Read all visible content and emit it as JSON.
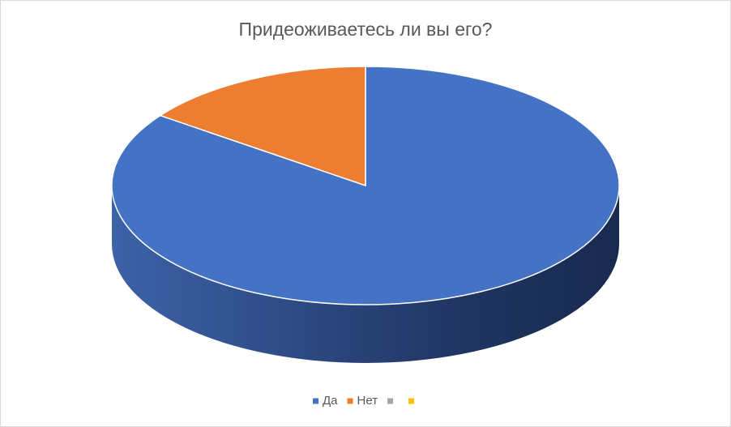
{
  "chart_data": {
    "type": "pie",
    "title": "Придеоживаетесь ли вы его?",
    "categories": [
      "Да",
      "Нет",
      null,
      null
    ],
    "values": [
      85,
      15,
      0,
      0
    ],
    "colors": [
      "#4472c4",
      "#ed7d31",
      "#a5a5a5",
      "#ffc000"
    ],
    "legend": "bottom"
  }
}
